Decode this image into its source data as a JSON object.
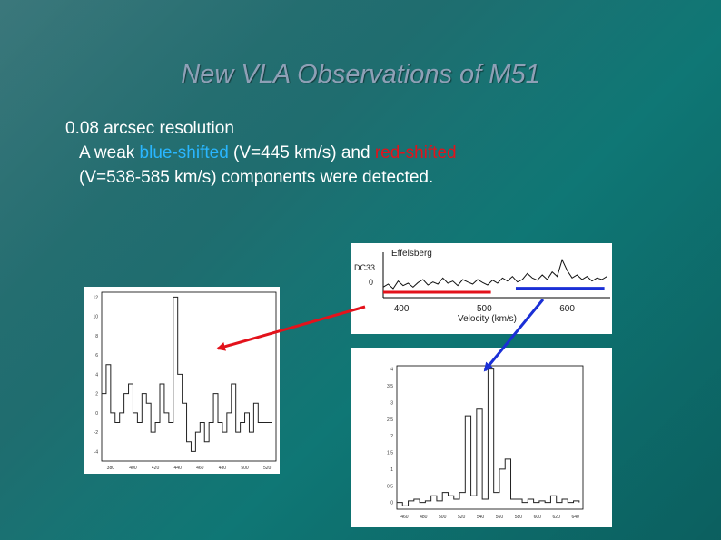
{
  "slide": {
    "title": "New VLA  Observations of M51",
    "bullet1": "0.08 arcsec resolution",
    "line2_a": "A weak ",
    "line2_blue": "blue-shifted",
    "line2_b": " (V=445 km/s) and ",
    "line2_red": "red-shifted",
    "line3": "(V=538-585 km/s) components were detected.",
    "colors": {
      "blue_text": "#29b6ff",
      "red_text": "#e3121b",
      "title": "#8fa0b6",
      "red_arrow": "#e3121b",
      "blue_arrow": "#1a2fd6"
    }
  },
  "chart_data": [
    {
      "type": "line",
      "id": "effelsberg",
      "label": "Effelsberg",
      "xlabel": "Velocity (km/s)",
      "y_tick_labels": [
        "DC33",
        "0"
      ],
      "x_ticks": [
        400,
        500,
        600
      ],
      "xlim": [
        378,
        652
      ],
      "ylim": [
        -0.3,
        1.2
      ],
      "marker_ranges": [
        {
          "color": "#e3121b",
          "from": 378,
          "to": 508,
          "y": -0.12
        },
        {
          "color": "#1a2fd6",
          "from": 538,
          "to": 645,
          "y": 0.01
        }
      ],
      "x": [
        378,
        384,
        390,
        396,
        402,
        408,
        414,
        420,
        426,
        432,
        438,
        444,
        450,
        456,
        462,
        468,
        474,
        480,
        486,
        492,
        498,
        504,
        510,
        516,
        522,
        528,
        534,
        540,
        546,
        552,
        558,
        564,
        570,
        576,
        582,
        588,
        594,
        600,
        606,
        612,
        618,
        624,
        630,
        636,
        642,
        648
      ],
      "y": [
        0.05,
        0.15,
        0.0,
        0.25,
        0.1,
        0.18,
        0.05,
        0.2,
        0.3,
        0.12,
        0.22,
        0.15,
        0.35,
        0.18,
        0.25,
        0.1,
        0.3,
        0.22,
        0.15,
        0.3,
        0.2,
        0.12,
        0.28,
        0.18,
        0.35,
        0.25,
        0.4,
        0.22,
        0.3,
        0.5,
        0.35,
        0.28,
        0.45,
        0.3,
        0.55,
        0.4,
        0.95,
        0.6,
        0.35,
        0.45,
        0.3,
        0.4,
        0.25,
        0.35,
        0.3,
        0.4
      ]
    },
    {
      "type": "line",
      "id": "vla-blue",
      "step": true,
      "x_ticks": [
        380,
        400,
        420,
        440,
        460,
        480,
        500,
        520
      ],
      "y_ticks": [
        -4,
        -2,
        0,
        2,
        4,
        6,
        8,
        10,
        12
      ],
      "xlim": [
        372,
        528
      ],
      "ylim": [
        -5,
        12.5
      ],
      "x": [
        372,
        376,
        380,
        384,
        388,
        392,
        396,
        400,
        404,
        408,
        412,
        416,
        420,
        424,
        428,
        432,
        436,
        440,
        444,
        448,
        452,
        456,
        460,
        464,
        468,
        472,
        476,
        480,
        484,
        488,
        492,
        496,
        500,
        504,
        508,
        512,
        516,
        520,
        524
      ],
      "y": [
        2,
        5,
        0,
        -1,
        0,
        2,
        3,
        0,
        -1,
        2,
        1,
        -2,
        -1,
        3,
        0,
        -1,
        12,
        4,
        1,
        -3,
        -4,
        -2,
        -1,
        -3,
        -1,
        2,
        -1,
        -2,
        0,
        3,
        -2,
        -1,
        0,
        -2,
        1,
        -1,
        -1,
        -1,
        -1
      ]
    },
    {
      "type": "line",
      "id": "vla-red",
      "step": true,
      "x_ticks": [
        460,
        480,
        500,
        520,
        540,
        560,
        580,
        600,
        620,
        640
      ],
      "y_ticks": [
        0,
        0.5,
        1.0,
        1.5,
        2.0,
        2.5,
        3.0,
        3.5,
        4.0
      ],
      "xlim": [
        452,
        648
      ],
      "ylim": [
        -0.2,
        4.1
      ],
      "x": [
        452,
        458,
        464,
        470,
        476,
        482,
        488,
        494,
        500,
        506,
        512,
        518,
        524,
        530,
        536,
        542,
        548,
        554,
        560,
        566,
        572,
        578,
        584,
        590,
        596,
        602,
        608,
        614,
        620,
        626,
        632,
        638,
        644
      ],
      "y": [
        0.0,
        -0.1,
        0.05,
        0.1,
        0.0,
        0.05,
        0.2,
        0.05,
        0.3,
        0.2,
        0.1,
        0.3,
        2.6,
        0.2,
        2.8,
        0.1,
        4.0,
        0.3,
        1.0,
        1.3,
        0.1,
        0.1,
        0.0,
        0.1,
        0.0,
        0.05,
        0.0,
        0.2,
        0.0,
        0.1,
        0.0,
        0.05,
        0.0
      ]
    }
  ]
}
